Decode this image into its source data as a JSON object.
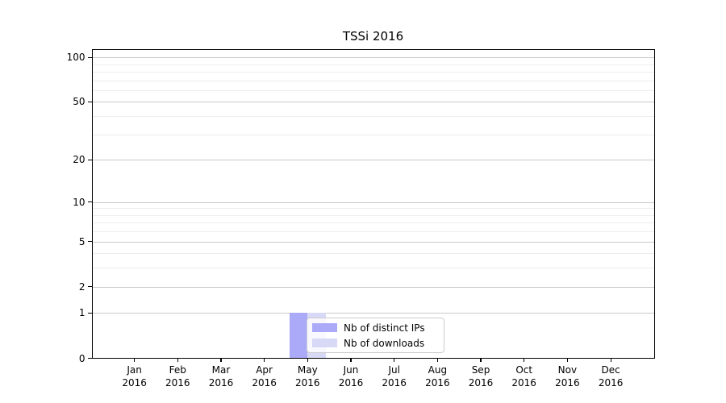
{
  "chart_data": {
    "type": "bar",
    "title": "TSSi 2016",
    "categories": [
      "Jan 2016",
      "Feb 2016",
      "Mar 2016",
      "Apr 2016",
      "May 2016",
      "Jun 2016",
      "Jul 2016",
      "Aug 2016",
      "Sep 2016",
      "Oct 2016",
      "Nov 2016",
      "Dec 2016"
    ],
    "series": [
      {
        "name": "Nb of distinct IPs",
        "color": "#aaaaf8",
        "values": [
          0,
          0,
          0,
          0,
          1,
          0,
          0,
          0,
          0,
          0,
          0,
          0
        ]
      },
      {
        "name": "Nb of downloads",
        "color": "#d8d8f7",
        "values": [
          0,
          0,
          0,
          0,
          1,
          0,
          0,
          0,
          0,
          0,
          0,
          0
        ]
      }
    ],
    "xlabel": "",
    "ylabel": "",
    "y_axis": {
      "scale": "log1p",
      "major_ticks": [
        0,
        1,
        2,
        5,
        10,
        20,
        50,
        100
      ],
      "minor_ticks": [
        3,
        4,
        6,
        7,
        8,
        9,
        30,
        40,
        60,
        70,
        80,
        90
      ],
      "ylim": [
        0,
        113
      ],
      "grid": true
    },
    "x_axis": {
      "grid": false
    },
    "legend": {
      "position": "lower center"
    },
    "colors": {
      "grid_major": "#c9c9c9",
      "grid_minor": "#ededed",
      "axis": "#000000"
    }
  }
}
